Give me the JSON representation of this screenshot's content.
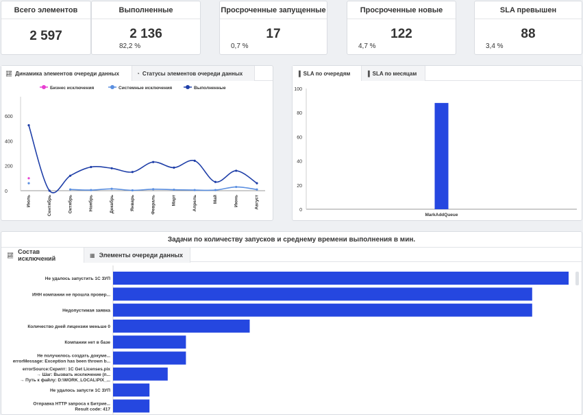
{
  "kpis": [
    {
      "title": "Всего элементов",
      "value": "2 597",
      "sub": ""
    },
    {
      "title": "Выполненные",
      "value": "2 136",
      "sub": "82,2 %"
    },
    {
      "title": "Просроченные запущенные",
      "value": "17",
      "sub": "0,7 %"
    },
    {
      "title": "Просроченные новые",
      "value": "122",
      "sub": "4,7 %"
    },
    {
      "title": "SLA превышен",
      "value": "88",
      "sub": "3,4 %"
    }
  ],
  "dynamics_panel": {
    "tabs": [
      {
        "label": "Динамика элементов очереди данных",
        "icon": "line-chart-icon"
      },
      {
        "label": "Статусы элементов очереди данных",
        "icon": "pie-chart-icon"
      }
    ]
  },
  "sla_panel": {
    "tabs": [
      {
        "label": "SLA по очередям",
        "icon": "bar-chart-icon"
      },
      {
        "label": "SLA по месяцам",
        "icon": "bar-chart-icon"
      }
    ]
  },
  "tasks_panel": {
    "title": "Задачи по количеству запусков и среднему времени выполнения в мин.",
    "tabs": [
      {
        "label": "Состав исключений",
        "icon": "line-chart-icon"
      },
      {
        "label": "Элементы очереди данных",
        "icon": "table-icon"
      }
    ]
  },
  "chart_data": [
    {
      "type": "line",
      "categories": [
        "Июль",
        "Сентябрь",
        "Октябрь",
        "Ноябрь",
        "Декабрь",
        "Январь",
        "Февраль",
        "Март",
        "Апрель",
        "Май",
        "Июнь",
        "Август"
      ],
      "series": [
        {
          "name": "Бизнес исключения",
          "color": "#e83fd2",
          "values": [
            100,
            null,
            null,
            null,
            null,
            null,
            null,
            null,
            null,
            null,
            null,
            null
          ]
        },
        {
          "name": "Системные исключения",
          "color": "#5b8fe0",
          "values": [
            60,
            null,
            10,
            5,
            15,
            3,
            12,
            8,
            5,
            5,
            30,
            10
          ]
        },
        {
          "name": "Выполненные",
          "color": "#1f3fa8",
          "values": [
            525,
            0,
            120,
            190,
            180,
            150,
            230,
            185,
            240,
            70,
            160,
            60
          ]
        }
      ],
      "yticks": [
        "0",
        "200",
        "400",
        "600"
      ],
      "ylim": [
        0,
        600
      ],
      "legend": "top"
    },
    {
      "type": "bar",
      "categories": [
        "MarkAddQueue"
      ],
      "values": [
        88
      ],
      "yticks": [
        "0",
        "20",
        "40",
        "60",
        "80",
        "100"
      ],
      "ylim": [
        0,
        100
      ],
      "color": "#2547e0"
    },
    {
      "type": "bar",
      "orientation": "horizontal",
      "categories": [
        [
          "Не удалось запустить 1С ЗУП"
        ],
        [
          "ИНН компании не прошла провер..."
        ],
        [
          "Недопустимая заявка"
        ],
        [
          "Количество дней лицензии меньше 0"
        ],
        [
          "Компании нет в базе"
        ],
        [
          "Не получилось создать докуме...",
          "errorMessage: Exception has been thrown b..."
        ],
        [
          "errorSource:Скрипт: 1С Get Licenses.pix",
          "→ Шаг: Вызвать исключение (п...",
          "→ Путь к файлу: D:\\WORK_LOCAL\\PIX_..."
        ],
        [
          "Не удалось запусти 1С ЗУП"
        ],
        [
          "Отправка HTTP запроса к Битрие...",
          "Result code: 417"
        ]
      ],
      "values": [
        100,
        92,
        92,
        30,
        16,
        16,
        12,
        8,
        8
      ],
      "color": "#2547e0"
    }
  ]
}
